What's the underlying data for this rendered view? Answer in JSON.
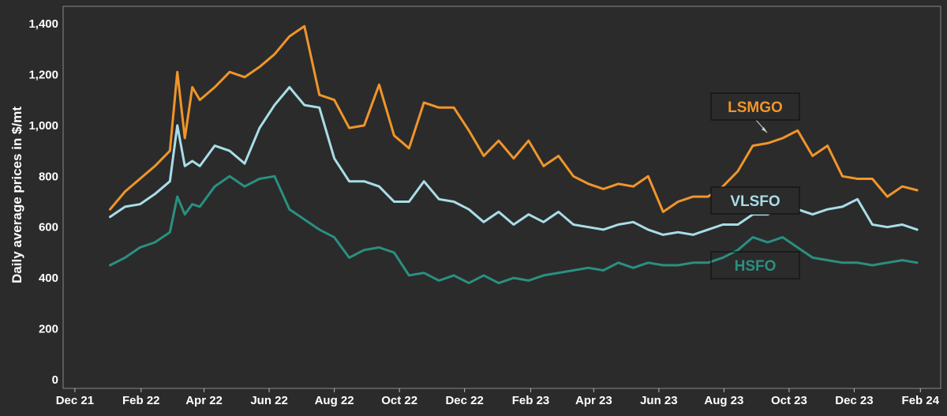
{
  "chart_data": {
    "type": "line",
    "ylabel": "Daily average prices in $/mt",
    "xlabel": "",
    "title": "",
    "ylim": [
      0,
      1400
    ],
    "y_ticks": [
      0,
      200,
      400,
      600,
      800,
      1000,
      1200,
      1400
    ],
    "y_tick_labels": [
      "0",
      "200",
      "400",
      "600",
      "800",
      "1,000",
      "1,200",
      "1,400"
    ],
    "x_ticks": [
      "2021-12-01",
      "2022-02-01",
      "2022-04-01",
      "2022-06-01",
      "2022-08-01",
      "2022-10-01",
      "2022-12-01",
      "2023-02-01",
      "2023-04-01",
      "2023-06-01",
      "2023-08-01",
      "2023-10-01",
      "2023-12-01",
      "2024-02-01"
    ],
    "x_tick_labels": [
      "Dec 21",
      "Feb 22",
      "Apr 22",
      "Jun 22",
      "Aug 22",
      "Oct 22",
      "Dec 22",
      "Feb 23",
      "Apr 23",
      "Jun 23",
      "Aug 23",
      "Oct 23",
      "Dec 23",
      "Feb 24"
    ],
    "x_range": [
      "2021-11-20",
      "2024-02-20"
    ],
    "x": [
      "2022-01-03",
      "2022-01-17",
      "2022-01-31",
      "2022-02-14",
      "2022-02-28",
      "2022-03-07",
      "2022-03-14",
      "2022-03-21",
      "2022-03-28",
      "2022-04-11",
      "2022-04-25",
      "2022-05-09",
      "2022-05-23",
      "2022-06-06",
      "2022-06-20",
      "2022-07-04",
      "2022-07-18",
      "2022-08-01",
      "2022-08-15",
      "2022-08-29",
      "2022-09-12",
      "2022-09-26",
      "2022-10-10",
      "2022-10-24",
      "2022-11-07",
      "2022-11-21",
      "2022-12-05",
      "2022-12-19",
      "2023-01-02",
      "2023-01-16",
      "2023-01-30",
      "2023-02-13",
      "2023-02-27",
      "2023-03-13",
      "2023-03-27",
      "2023-04-10",
      "2023-04-24",
      "2023-05-08",
      "2023-05-22",
      "2023-06-05",
      "2023-06-19",
      "2023-07-03",
      "2023-07-17",
      "2023-07-31",
      "2023-08-14",
      "2023-08-28",
      "2023-09-11",
      "2023-09-25",
      "2023-10-09",
      "2023-10-23",
      "2023-11-06",
      "2023-11-20",
      "2023-12-04",
      "2023-12-18",
      "2024-01-01",
      "2024-01-15",
      "2024-01-29"
    ],
    "series": [
      {
        "name": "LSMGO",
        "color": "#f0952a",
        "values": [
          670,
          740,
          790,
          840,
          900,
          1210,
          950,
          1150,
          1100,
          1150,
          1210,
          1190,
          1230,
          1280,
          1350,
          1390,
          1120,
          1100,
          990,
          1000,
          1160,
          960,
          910,
          1090,
          1070,
          1070,
          980,
          880,
          940,
          870,
          940,
          840,
          880,
          800,
          770,
          750,
          770,
          760,
          800,
          660,
          700,
          720,
          720,
          760,
          820,
          920,
          930,
          950,
          980,
          880,
          920,
          800,
          790,
          790,
          720,
          760,
          745
        ]
      },
      {
        "name": "VLSFO",
        "color": "#a8dde8",
        "values": [
          640,
          680,
          690,
          730,
          780,
          1000,
          840,
          860,
          840,
          920,
          900,
          850,
          990,
          1080,
          1150,
          1080,
          1070,
          870,
          780,
          780,
          760,
          700,
          700,
          780,
          710,
          700,
          670,
          620,
          660,
          610,
          650,
          620,
          660,
          610,
          600,
          590,
          610,
          620,
          590,
          570,
          580,
          570,
          590,
          610,
          610,
          650,
          650,
          680,
          670,
          650,
          670,
          680,
          710,
          610,
          600,
          610,
          590
        ]
      },
      {
        "name": "HSFO",
        "color": "#2a9080",
        "values": [
          450,
          480,
          520,
          540,
          580,
          720,
          650,
          690,
          680,
          760,
          800,
          760,
          790,
          800,
          670,
          630,
          590,
          560,
          480,
          510,
          520,
          500,
          410,
          420,
          390,
          410,
          380,
          410,
          380,
          400,
          390,
          410,
          420,
          430,
          440,
          430,
          460,
          440,
          460,
          450,
          450,
          460,
          460,
          480,
          510,
          560,
          540,
          560,
          520,
          480,
          470,
          460,
          460,
          450,
          460,
          470,
          460
        ]
      }
    ],
    "legend": [
      {
        "label": "LSMGO",
        "color": "#f0952a",
        "placement": "near series, upper right"
      },
      {
        "label": "VLSFO",
        "color": "#a8dde8",
        "placement": "on series, right"
      },
      {
        "label": "HSFO",
        "color": "#2a9080",
        "placement": "on series, right"
      }
    ],
    "grid": false,
    "background": "#2b2b2b",
    "text_color": "#ffffff"
  }
}
